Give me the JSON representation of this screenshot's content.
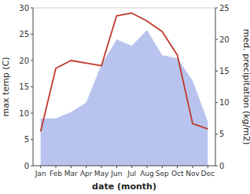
{
  "chart_data": {
    "type": "line",
    "xlabel": "date (month)",
    "ylabel": "max temp (C)",
    "y2label": "med. precipitation (kg/m2)",
    "categories": [
      "Jan",
      "Feb",
      "Mar",
      "Apr",
      "May",
      "Jun",
      "Jul",
      "Aug",
      "Sep",
      "Oct",
      "Nov",
      "Dec"
    ],
    "series": [
      {
        "type": "area",
        "color": "#b8c4ee",
        "axis": "y2",
        "values": [
          7.5,
          7.5,
          8.5,
          10.0,
          16.0,
          20.0,
          19.0,
          21.5,
          17.5,
          17.0,
          13.5,
          7.0
        ]
      },
      {
        "type": "line",
        "color": "#c0392b",
        "values": [
          6.5,
          18.5,
          20.0,
          19.5,
          19.0,
          28.5,
          29.0,
          27.5,
          25.5,
          21.0,
          8.0,
          7.0
        ]
      }
    ],
    "ylim": [
      0,
      30
    ],
    "yticks": [
      0,
      5,
      10,
      15,
      20,
      25,
      30
    ],
    "y2lim": [
      0,
      25
    ],
    "y2ticks": [
      0,
      5,
      10,
      15,
      20,
      25
    ]
  }
}
